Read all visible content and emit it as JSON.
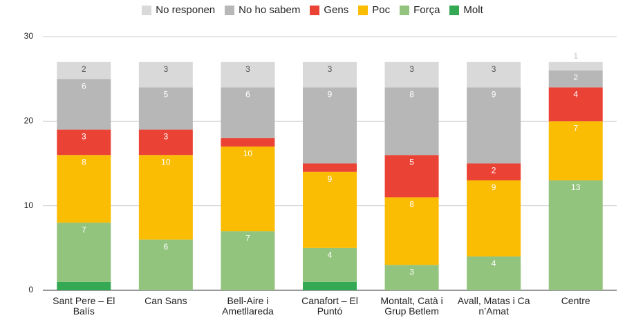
{
  "chart_data": {
    "type": "stacked_bar",
    "categories": [
      "Sant Pere – El Balís",
      "Can Sans",
      "Bell-Aire i Ametllareda",
      "Canafort – El Puntó",
      "Montalt, Catà i Grup Betlem",
      "Avall, Matas i Ca n’Amat",
      "Centre"
    ],
    "series": [
      {
        "name": "Molt",
        "color": "#34a853",
        "values": [
          1,
          0,
          0,
          1,
          0,
          0,
          0
        ]
      },
      {
        "name": "Força",
        "color": "#93c47d",
        "values": [
          7,
          6,
          7,
          4,
          3,
          4,
          13
        ]
      },
      {
        "name": "Poc",
        "color": "#fbbc04",
        "values": [
          8,
          10,
          10,
          9,
          8,
          9,
          7
        ]
      },
      {
        "name": "Gens",
        "color": "#ea4335",
        "values": [
          3,
          3,
          1,
          1,
          5,
          2,
          4
        ]
      },
      {
        "name": "No ho sabem",
        "color": "#b7b7b7",
        "values": [
          6,
          5,
          6,
          9,
          8,
          9,
          2
        ]
      },
      {
        "name": "No responen",
        "color": "#d9d9d9",
        "values": [
          2,
          3,
          3,
          3,
          3,
          3,
          1
        ]
      }
    ],
    "ylim": [
      0,
      30
    ],
    "yticks": [
      0,
      10,
      20,
      30
    ],
    "grid": true,
    "legend": "top"
  }
}
